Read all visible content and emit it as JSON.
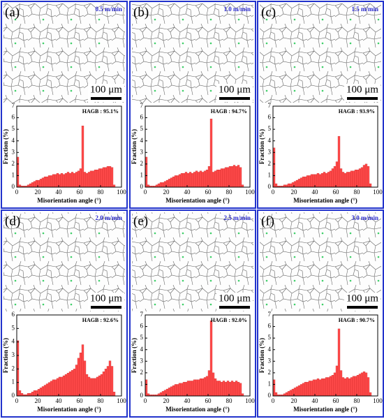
{
  "chart_data": [
    {
      "type": "histogram",
      "panel_label": "(a)",
      "speed": "0.5 m/min",
      "scale_bar": "100 μm",
      "annotation": "HAGB : 95.1%",
      "xlabel": "Misorientation angle (°)",
      "ylabel": "Fraction (%)",
      "color": "#ff4a4a",
      "bins": [
        0,
        2,
        4,
        6,
        8,
        10,
        12,
        14,
        16,
        18,
        20,
        22,
        24,
        26,
        28,
        30,
        32,
        34,
        36,
        38,
        40,
        42,
        44,
        46,
        48,
        50,
        52,
        54,
        56,
        58,
        60,
        62,
        64,
        66,
        68,
        70,
        72,
        74,
        76,
        78,
        80,
        82,
        84,
        86,
        88,
        90,
        92,
        94
      ],
      "values": [
        2.6,
        0.2,
        0.1,
        0.1,
        0.1,
        0.2,
        0.3,
        0.4,
        0.5,
        0.6,
        0.6,
        0.7,
        0.8,
        0.9,
        0.9,
        1.0,
        1.0,
        1.1,
        1.1,
        1.2,
        1.1,
        1.2,
        1.1,
        1.2,
        1.3,
        1.2,
        1.3,
        1.2,
        1.3,
        1.4,
        1.6,
        5.3,
        1.3,
        1.2,
        1.3,
        1.4,
        1.4,
        1.5,
        1.5,
        1.6,
        1.6,
        1.7,
        1.7,
        1.8,
        1.8,
        1.7,
        0.2
      ],
      "xlim": [
        0,
        100
      ],
      "ylim": [
        0,
        7
      ],
      "xticks": [
        0,
        20,
        40,
        60,
        80,
        100
      ],
      "yticks": [
        0,
        1,
        2,
        3,
        4,
        5,
        6,
        7
      ]
    },
    {
      "type": "histogram",
      "panel_label": "(b)",
      "speed": "1.0 m/min",
      "scale_bar": "100 μm",
      "annotation": "HAGB : 94.7%",
      "xlabel": "Misorientation angle (°)",
      "ylabel": "Fraction (%)",
      "color": "#ff4a4a",
      "bins": [
        0,
        2,
        4,
        6,
        8,
        10,
        12,
        14,
        16,
        18,
        20,
        22,
        24,
        26,
        28,
        30,
        32,
        34,
        36,
        38,
        40,
        42,
        44,
        46,
        48,
        50,
        52,
        54,
        56,
        58,
        60,
        62,
        64,
        66,
        68,
        70,
        72,
        74,
        76,
        78,
        80,
        82,
        84,
        86,
        88,
        90,
        92,
        94
      ],
      "values": [
        2.6,
        0.2,
        0.1,
        0.1,
        0.1,
        0.2,
        0.3,
        0.4,
        0.4,
        0.5,
        0.6,
        0.7,
        0.8,
        0.9,
        1.0,
        1.0,
        1.1,
        1.2,
        1.2,
        1.3,
        1.2,
        1.3,
        1.2,
        1.3,
        1.4,
        1.3,
        1.4,
        1.3,
        1.4,
        1.5,
        1.8,
        5.9,
        1.3,
        1.4,
        1.5,
        1.5,
        1.6,
        1.6,
        1.7,
        1.7,
        1.8,
        1.8,
        1.9,
        1.8,
        1.9,
        1.7,
        0.2
      ],
      "xlim": [
        0,
        100
      ],
      "ylim": [
        0,
        7
      ],
      "xticks": [
        0,
        20,
        40,
        60,
        80,
        100
      ],
      "yticks": [
        0,
        1,
        2,
        3,
        4,
        5,
        6,
        7
      ]
    },
    {
      "type": "histogram",
      "panel_label": "(c)",
      "speed": "1.5 m/min",
      "scale_bar": "100 μm",
      "annotation": "HAGB : 93.9%",
      "xlabel": "Misorientation angle (°)",
      "ylabel": "Fraction (%)",
      "color": "#ff4a4a",
      "bins": [
        0,
        2,
        4,
        6,
        8,
        10,
        12,
        14,
        16,
        18,
        20,
        22,
        24,
        26,
        28,
        30,
        32,
        34,
        36,
        38,
        40,
        42,
        44,
        46,
        48,
        50,
        52,
        54,
        56,
        58,
        60,
        62,
        64,
        66,
        68,
        70,
        72,
        74,
        76,
        78,
        80,
        82,
        84,
        86,
        88,
        90,
        92,
        94
      ],
      "values": [
        3.4,
        0.3,
        0.1,
        0.1,
        0.1,
        0.2,
        0.2,
        0.3,
        0.3,
        0.4,
        0.5,
        0.6,
        0.7,
        0.8,
        0.9,
        0.9,
        1.0,
        1.0,
        1.1,
        1.1,
        1.1,
        1.2,
        1.1,
        1.2,
        1.3,
        1.2,
        1.3,
        1.4,
        1.6,
        1.8,
        2.2,
        4.4,
        1.6,
        1.3,
        1.2,
        1.3,
        1.3,
        1.4,
        1.4,
        1.5,
        1.5,
        1.6,
        1.7,
        1.9,
        2.0,
        1.8,
        0.3
      ],
      "xlim": [
        0,
        100
      ],
      "ylim": [
        0,
        7
      ],
      "xticks": [
        0,
        20,
        40,
        60,
        80,
        100
      ],
      "yticks": [
        0,
        1,
        2,
        3,
        4,
        5,
        6,
        7
      ]
    },
    {
      "type": "histogram",
      "panel_label": "(d)",
      "speed": "2.0 m/min",
      "scale_bar": "100 μm",
      "annotation": "HAGB : 92.6%",
      "xlabel": "Misorientation angle (°)",
      "ylabel": "Fraction (%)",
      "color": "#ff4a4a",
      "bins": [
        0,
        2,
        4,
        6,
        8,
        10,
        12,
        14,
        16,
        18,
        20,
        22,
        24,
        26,
        28,
        30,
        32,
        34,
        36,
        38,
        40,
        42,
        44,
        46,
        48,
        50,
        52,
        54,
        56,
        58,
        60,
        62,
        64,
        66,
        68,
        70,
        72,
        74,
        76,
        78,
        80,
        82,
        84,
        86,
        88,
        90,
        92,
        94
      ],
      "values": [
        4.1,
        0.4,
        0.2,
        0.1,
        0.1,
        0.2,
        0.2,
        0.3,
        0.4,
        0.4,
        0.5,
        0.6,
        0.7,
        0.8,
        0.9,
        1.0,
        1.1,
        1.2,
        1.2,
        1.3,
        1.4,
        1.4,
        1.5,
        1.6,
        1.7,
        1.8,
        1.9,
        2.0,
        2.3,
        2.8,
        3.2,
        3.8,
        2.6,
        1.6,
        1.4,
        1.3,
        1.3,
        1.3,
        1.4,
        1.5,
        1.6,
        1.8,
        2.0,
        2.2,
        2.6,
        2.2,
        0.3
      ],
      "xlim": [
        0,
        100
      ],
      "ylim": [
        0,
        6
      ],
      "xticks": [
        0,
        20,
        40,
        60,
        80,
        100
      ],
      "yticks": [
        0,
        1,
        2,
        3,
        4,
        5,
        6
      ]
    },
    {
      "type": "histogram",
      "panel_label": "(e)",
      "speed": "2.5 m/min",
      "scale_bar": "100 μm",
      "annotation": "HAGB : 92.0%",
      "xlabel": "Misorientation angle (°)",
      "ylabel": "Fraction (%)",
      "color": "#ff4a4a",
      "bins": [
        0,
        2,
        4,
        6,
        8,
        10,
        12,
        14,
        16,
        18,
        20,
        22,
        24,
        26,
        28,
        30,
        32,
        34,
        36,
        38,
        40,
        42,
        44,
        46,
        48,
        50,
        52,
        54,
        56,
        58,
        60,
        62,
        64,
        66,
        68,
        70,
        72,
        74,
        76,
        78,
        80,
        82,
        84,
        86,
        88,
        90,
        92,
        94
      ],
      "values": [
        1.4,
        0.2,
        0.1,
        0.1,
        0.1,
        0.1,
        0.2,
        0.3,
        0.4,
        0.5,
        0.6,
        0.7,
        0.8,
        0.9,
        1.0,
        1.0,
        1.1,
        1.1,
        1.2,
        1.2,
        1.3,
        1.3,
        1.3,
        1.4,
        1.4,
        1.4,
        1.5,
        1.5,
        1.6,
        1.7,
        2.2,
        6.5,
        2.0,
        1.5,
        1.3,
        1.3,
        1.2,
        1.3,
        1.2,
        1.3,
        1.2,
        1.3,
        1.2,
        1.3,
        1.2,
        1.1,
        0.2
      ],
      "xlim": [
        0,
        100
      ],
      "ylim": [
        0,
        7
      ],
      "xticks": [
        0,
        20,
        40,
        60,
        80,
        100
      ],
      "yticks": [
        0,
        1,
        2,
        3,
        4,
        5,
        6,
        7
      ]
    },
    {
      "type": "histogram",
      "panel_label": "(f)",
      "speed": "3.0 m/min",
      "scale_bar": "100 μm",
      "annotation": "HAGB : 90.7%",
      "xlabel": "Misorientation angle (°)",
      "ylabel": "Fraction (%)",
      "color": "#ff4a4a",
      "bins": [
        0,
        2,
        4,
        6,
        8,
        10,
        12,
        14,
        16,
        18,
        20,
        22,
        24,
        26,
        28,
        30,
        32,
        34,
        36,
        38,
        40,
        42,
        44,
        46,
        48,
        50,
        52,
        54,
        56,
        58,
        60,
        62,
        64,
        66,
        68,
        70,
        72,
        74,
        76,
        78,
        80,
        82,
        84,
        86,
        88,
        90,
        92,
        94
      ],
      "values": [
        1.4,
        0.3,
        0.1,
        0.1,
        0.1,
        0.2,
        0.3,
        0.4,
        0.5,
        0.6,
        0.7,
        0.8,
        0.9,
        1.0,
        1.1,
        1.2,
        1.2,
        1.3,
        1.3,
        1.4,
        1.4,
        1.5,
        1.4,
        1.5,
        1.5,
        1.6,
        1.6,
        1.7,
        1.8,
        2.0,
        2.6,
        5.8,
        2.2,
        1.6,
        1.5,
        1.6,
        1.5,
        1.6,
        1.7,
        1.7,
        1.8,
        1.9,
        2.0,
        2.1,
        2.0,
        1.6,
        0.3
      ],
      "xlim": [
        0,
        100
      ],
      "ylim": [
        0,
        7
      ],
      "xticks": [
        0,
        20,
        40,
        60,
        80,
        100
      ],
      "yticks": [
        0,
        1,
        2,
        3,
        4,
        5,
        6,
        7
      ]
    }
  ]
}
